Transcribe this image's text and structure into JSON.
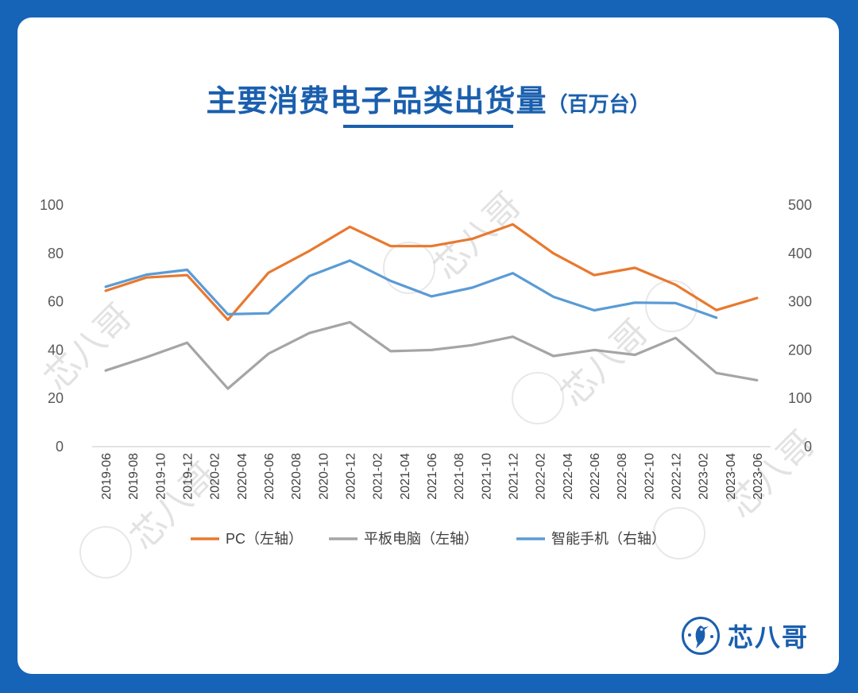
{
  "title": {
    "main": "主要消费电子品类出货量",
    "unit": "（百万台）"
  },
  "watermark_text": "芯八哥",
  "logo": {
    "text": "芯八哥",
    "icon": "bird-icon"
  },
  "colors": {
    "background": "#1664b8",
    "title": "#1a5fae",
    "pc": "#e8792f",
    "tablet": "#a5a5a5",
    "phone": "#5a9bd5"
  },
  "chart_data": {
    "type": "line",
    "x": [
      "2019-06",
      "2019-08",
      "2019-10",
      "2019-12",
      "2020-02",
      "2020-04",
      "2020-06",
      "2020-08",
      "2020-10",
      "2020-12",
      "2021-02",
      "2021-04",
      "2021-06",
      "2021-08",
      "2021-10",
      "2021-12",
      "2022-02",
      "2022-04",
      "2022-06",
      "2022-08",
      "2022-10",
      "2022-12",
      "2023-02",
      "2023-04",
      "2023-06"
    ],
    "y_left": {
      "ylim": [
        0,
        100
      ],
      "ticks": [
        "0",
        "20",
        "40",
        "60",
        "80",
        "100"
      ]
    },
    "y_right": {
      "ylim": [
        0,
        500
      ],
      "ticks": [
        "0",
        "100",
        "200",
        "300",
        "400",
        "500"
      ]
    },
    "grid": false,
    "legend_position": "bottom",
    "series": [
      {
        "name": "PC（左轴）",
        "axis": "left",
        "x": [
          "2019-06",
          "2019-09",
          "2019-12",
          "2020-03",
          "2020-06",
          "2020-09",
          "2020-12",
          "2021-03",
          "2021-06",
          "2021-09",
          "2021-12",
          "2022-03",
          "2022-06",
          "2022-09",
          "2022-12",
          "2023-03",
          "2023-06"
        ],
        "values": [
          64.5,
          70,
          71,
          52.5,
          72,
          81,
          91,
          83,
          83,
          86,
          92,
          80,
          71,
          74,
          67,
          56.5,
          61.5
        ]
      },
      {
        "name": "平板电脑（左轴）",
        "axis": "left",
        "x": [
          "2019-06",
          "2019-09",
          "2019-12",
          "2020-03",
          "2020-06",
          "2020-09",
          "2020-12",
          "2021-03",
          "2021-06",
          "2021-09",
          "2021-12",
          "2022-03",
          "2022-06",
          "2022-09",
          "2022-12",
          "2023-03",
          "2023-06"
        ],
        "values": [
          31.5,
          37,
          43,
          24,
          38.5,
          47,
          51.5,
          39.5,
          40,
          42,
          45.5,
          37.5,
          40,
          38,
          45,
          30.5,
          27.5
        ]
      },
      {
        "name": "智能手机（右轴）",
        "axis": "right",
        "x": [
          "2019-06",
          "2019-09",
          "2019-12",
          "2020-03",
          "2020-06",
          "2020-09",
          "2020-12",
          "2021-03",
          "2021-06",
          "2021-09",
          "2021-12",
          "2022-03",
          "2022-06",
          "2022-09",
          "2022-12",
          "2023-03"
        ],
        "values": [
          331,
          356,
          366,
          274,
          276,
          353,
          385,
          343,
          311,
          329,
          359,
          310,
          282,
          298,
          297,
          267
        ]
      }
    ]
  }
}
